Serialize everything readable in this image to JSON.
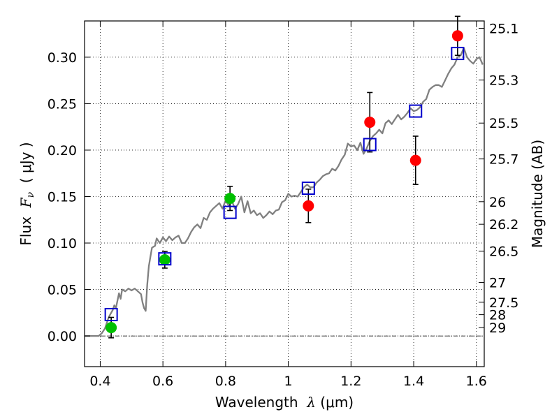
{
  "chart_data": {
    "type": "scatter",
    "xlabel": "Wavelength  λ (μm)",
    "xlabel_parts": {
      "prefix": "Wavelength  ",
      "symbol": "λ",
      "units": " (μm)"
    },
    "ylabel": "Flux  F_ν  ( μJy )",
    "ylabel_parts": {
      "prefix": "Flux  ",
      "symbol": "F",
      "subscript": "ν",
      "units": "  ( μJy )"
    },
    "y2label": "Magnitude (AB)",
    "xlim": [
      0.35,
      1.625
    ],
    "ylim": [
      -0.033,
      0.339
    ],
    "x_ticks": [
      {
        "value": 0.4,
        "label": "0.4"
      },
      {
        "value": 0.6,
        "label": "0.6"
      },
      {
        "value": 0.8,
        "label": "0.8"
      },
      {
        "value": 1.0,
        "label": "1"
      },
      {
        "value": 1.2,
        "label": "1.2"
      },
      {
        "value": 1.4,
        "label": "1.4"
      },
      {
        "value": 1.6,
        "label": "1.6"
      }
    ],
    "y_ticks": [
      {
        "value": 0.0,
        "label": "0.00"
      },
      {
        "value": 0.05,
        "label": "0.05"
      },
      {
        "value": 0.1,
        "label": "0.10"
      },
      {
        "value": 0.15,
        "label": "0.15"
      },
      {
        "value": 0.2,
        "label": "0.20"
      },
      {
        "value": 0.25,
        "label": "0.25"
      },
      {
        "value": 0.3,
        "label": "0.30"
      }
    ],
    "magnitude_ticks": [
      {
        "label": "25.1",
        "flux": 0.3311
      },
      {
        "label": "25.3",
        "flux": 0.2754
      },
      {
        "label": "25.5",
        "flux": 0.2291
      },
      {
        "label": "25.7",
        "flux": 0.1905
      },
      {
        "label": "26",
        "flux": 0.1445
      },
      {
        "label": "26.2",
        "flux": 0.1202
      },
      {
        "label": "26.5",
        "flux": 0.0912
      },
      {
        "label": "27",
        "flux": 0.0575
      },
      {
        "label": "27.5",
        "flux": 0.0363
      },
      {
        "label": "28",
        "flux": 0.0229
      },
      {
        "label": "29",
        "flux": 0.0091
      }
    ],
    "grid": true,
    "zero_line": true,
    "colors": {
      "model": "#808080",
      "green_points": "#00c000",
      "red_points": "#ff0000",
      "squares": "#0000cc",
      "errorbars": "#000000"
    },
    "series": [
      {
        "kind": "model_sed",
        "points": [
          [
            0.35,
            0.0
          ],
          [
            0.395,
            0.0
          ],
          [
            0.405,
            0.003
          ],
          [
            0.415,
            0.008
          ],
          [
            0.425,
            0.018
          ],
          [
            0.43,
            0.022
          ],
          [
            0.44,
            0.028
          ],
          [
            0.445,
            0.033
          ],
          [
            0.45,
            0.03
          ],
          [
            0.46,
            0.046
          ],
          [
            0.465,
            0.04
          ],
          [
            0.47,
            0.05
          ],
          [
            0.48,
            0.048
          ],
          [
            0.49,
            0.051
          ],
          [
            0.5,
            0.049
          ],
          [
            0.51,
            0.051
          ],
          [
            0.52,
            0.048
          ],
          [
            0.53,
            0.045
          ],
          [
            0.535,
            0.036
          ],
          [
            0.54,
            0.03
          ],
          [
            0.545,
            0.027
          ],
          [
            0.55,
            0.055
          ],
          [
            0.555,
            0.075
          ],
          [
            0.56,
            0.085
          ],
          [
            0.565,
            0.095
          ],
          [
            0.575,
            0.097
          ],
          [
            0.58,
            0.105
          ],
          [
            0.59,
            0.1
          ],
          [
            0.6,
            0.106
          ],
          [
            0.61,
            0.102
          ],
          [
            0.62,
            0.107
          ],
          [
            0.63,
            0.103
          ],
          [
            0.64,
            0.106
          ],
          [
            0.65,
            0.108
          ],
          [
            0.66,
            0.1
          ],
          [
            0.67,
            0.1
          ],
          [
            0.68,
            0.105
          ],
          [
            0.69,
            0.112
          ],
          [
            0.7,
            0.117
          ],
          [
            0.71,
            0.12
          ],
          [
            0.72,
            0.116
          ],
          [
            0.73,
            0.127
          ],
          [
            0.74,
            0.125
          ],
          [
            0.75,
            0.133
          ],
          [
            0.76,
            0.137
          ],
          [
            0.77,
            0.14
          ],
          [
            0.78,
            0.143
          ],
          [
            0.79,
            0.137
          ],
          [
            0.8,
            0.146
          ],
          [
            0.81,
            0.14
          ],
          [
            0.82,
            0.145
          ],
          [
            0.83,
            0.137
          ],
          [
            0.84,
            0.142
          ],
          [
            0.85,
            0.15
          ],
          [
            0.86,
            0.133
          ],
          [
            0.87,
            0.145
          ],
          [
            0.88,
            0.132
          ],
          [
            0.89,
            0.135
          ],
          [
            0.9,
            0.13
          ],
          [
            0.91,
            0.132
          ],
          [
            0.92,
            0.127
          ],
          [
            0.93,
            0.13
          ],
          [
            0.94,
            0.134
          ],
          [
            0.95,
            0.131
          ],
          [
            0.96,
            0.135
          ],
          [
            0.97,
            0.136
          ],
          [
            0.98,
            0.144
          ],
          [
            0.99,
            0.146
          ],
          [
            1.0,
            0.153
          ],
          [
            1.01,
            0.15
          ],
          [
            1.02,
            0.151
          ],
          [
            1.03,
            0.15
          ],
          [
            1.04,
            0.155
          ],
          [
            1.05,
            0.16
          ],
          [
            1.06,
            0.163
          ],
          [
            1.07,
            0.16
          ],
          [
            1.08,
            0.16
          ],
          [
            1.09,
            0.165
          ],
          [
            1.1,
            0.168
          ],
          [
            1.11,
            0.172
          ],
          [
            1.12,
            0.174
          ],
          [
            1.13,
            0.175
          ],
          [
            1.14,
            0.18
          ],
          [
            1.15,
            0.178
          ],
          [
            1.16,
            0.183
          ],
          [
            1.17,
            0.19
          ],
          [
            1.18,
            0.195
          ],
          [
            1.19,
            0.207
          ],
          [
            1.2,
            0.204
          ],
          [
            1.21,
            0.205
          ],
          [
            1.22,
            0.2
          ],
          [
            1.23,
            0.208
          ],
          [
            1.24,
            0.196
          ],
          [
            1.25,
            0.202
          ],
          [
            1.26,
            0.21
          ],
          [
            1.27,
            0.215
          ],
          [
            1.28,
            0.218
          ],
          [
            1.29,
            0.222
          ],
          [
            1.3,
            0.218
          ],
          [
            1.31,
            0.229
          ],
          [
            1.32,
            0.232
          ],
          [
            1.33,
            0.228
          ],
          [
            1.34,
            0.233
          ],
          [
            1.35,
            0.238
          ],
          [
            1.36,
            0.233
          ],
          [
            1.37,
            0.236
          ],
          [
            1.38,
            0.24
          ],
          [
            1.39,
            0.245
          ],
          [
            1.4,
            0.242
          ],
          [
            1.41,
            0.243
          ],
          [
            1.42,
            0.246
          ],
          [
            1.43,
            0.252
          ],
          [
            1.44,
            0.255
          ],
          [
            1.45,
            0.265
          ],
          [
            1.46,
            0.268
          ],
          [
            1.47,
            0.27
          ],
          [
            1.48,
            0.27
          ],
          [
            1.49,
            0.268
          ],
          [
            1.5,
            0.275
          ],
          [
            1.51,
            0.282
          ],
          [
            1.52,
            0.288
          ],
          [
            1.53,
            0.292
          ],
          [
            1.54,
            0.3
          ],
          [
            1.55,
            0.302
          ],
          [
            1.56,
            0.31
          ],
          [
            1.57,
            0.3
          ],
          [
            1.58,
            0.296
          ],
          [
            1.59,
            0.293
          ],
          [
            1.6,
            0.298
          ],
          [
            1.61,
            0.3
          ],
          [
            1.62,
            0.292
          ]
        ]
      },
      {
        "kind": "model_band_fluxes",
        "marker": "square",
        "points": [
          {
            "x": 0.435,
            "y": 0.023
          },
          {
            "x": 0.606,
            "y": 0.083
          },
          {
            "x": 0.814,
            "y": 0.133
          },
          {
            "x": 1.064,
            "y": 0.159
          },
          {
            "x": 1.26,
            "y": 0.206
          },
          {
            "x": 1.406,
            "y": 0.242
          },
          {
            "x": 1.54,
            "y": 0.304
          }
        ]
      },
      {
        "kind": "observed_optical",
        "marker": "circle",
        "points": [
          {
            "x": 0.435,
            "y": 0.009,
            "err": 0.011
          },
          {
            "x": 0.606,
            "y": 0.082,
            "err": 0.009
          },
          {
            "x": 0.814,
            "y": 0.148,
            "err": 0.013
          }
        ]
      },
      {
        "kind": "observed_nir",
        "marker": "circle",
        "points": [
          {
            "x": 1.064,
            "y": 0.14,
            "err": 0.018
          },
          {
            "x": 1.26,
            "y": 0.23,
            "err": 0.032
          },
          {
            "x": 1.406,
            "y": 0.189,
            "err": 0.026
          },
          {
            "x": 1.54,
            "y": 0.323,
            "err": 0.021
          }
        ]
      }
    ]
  }
}
